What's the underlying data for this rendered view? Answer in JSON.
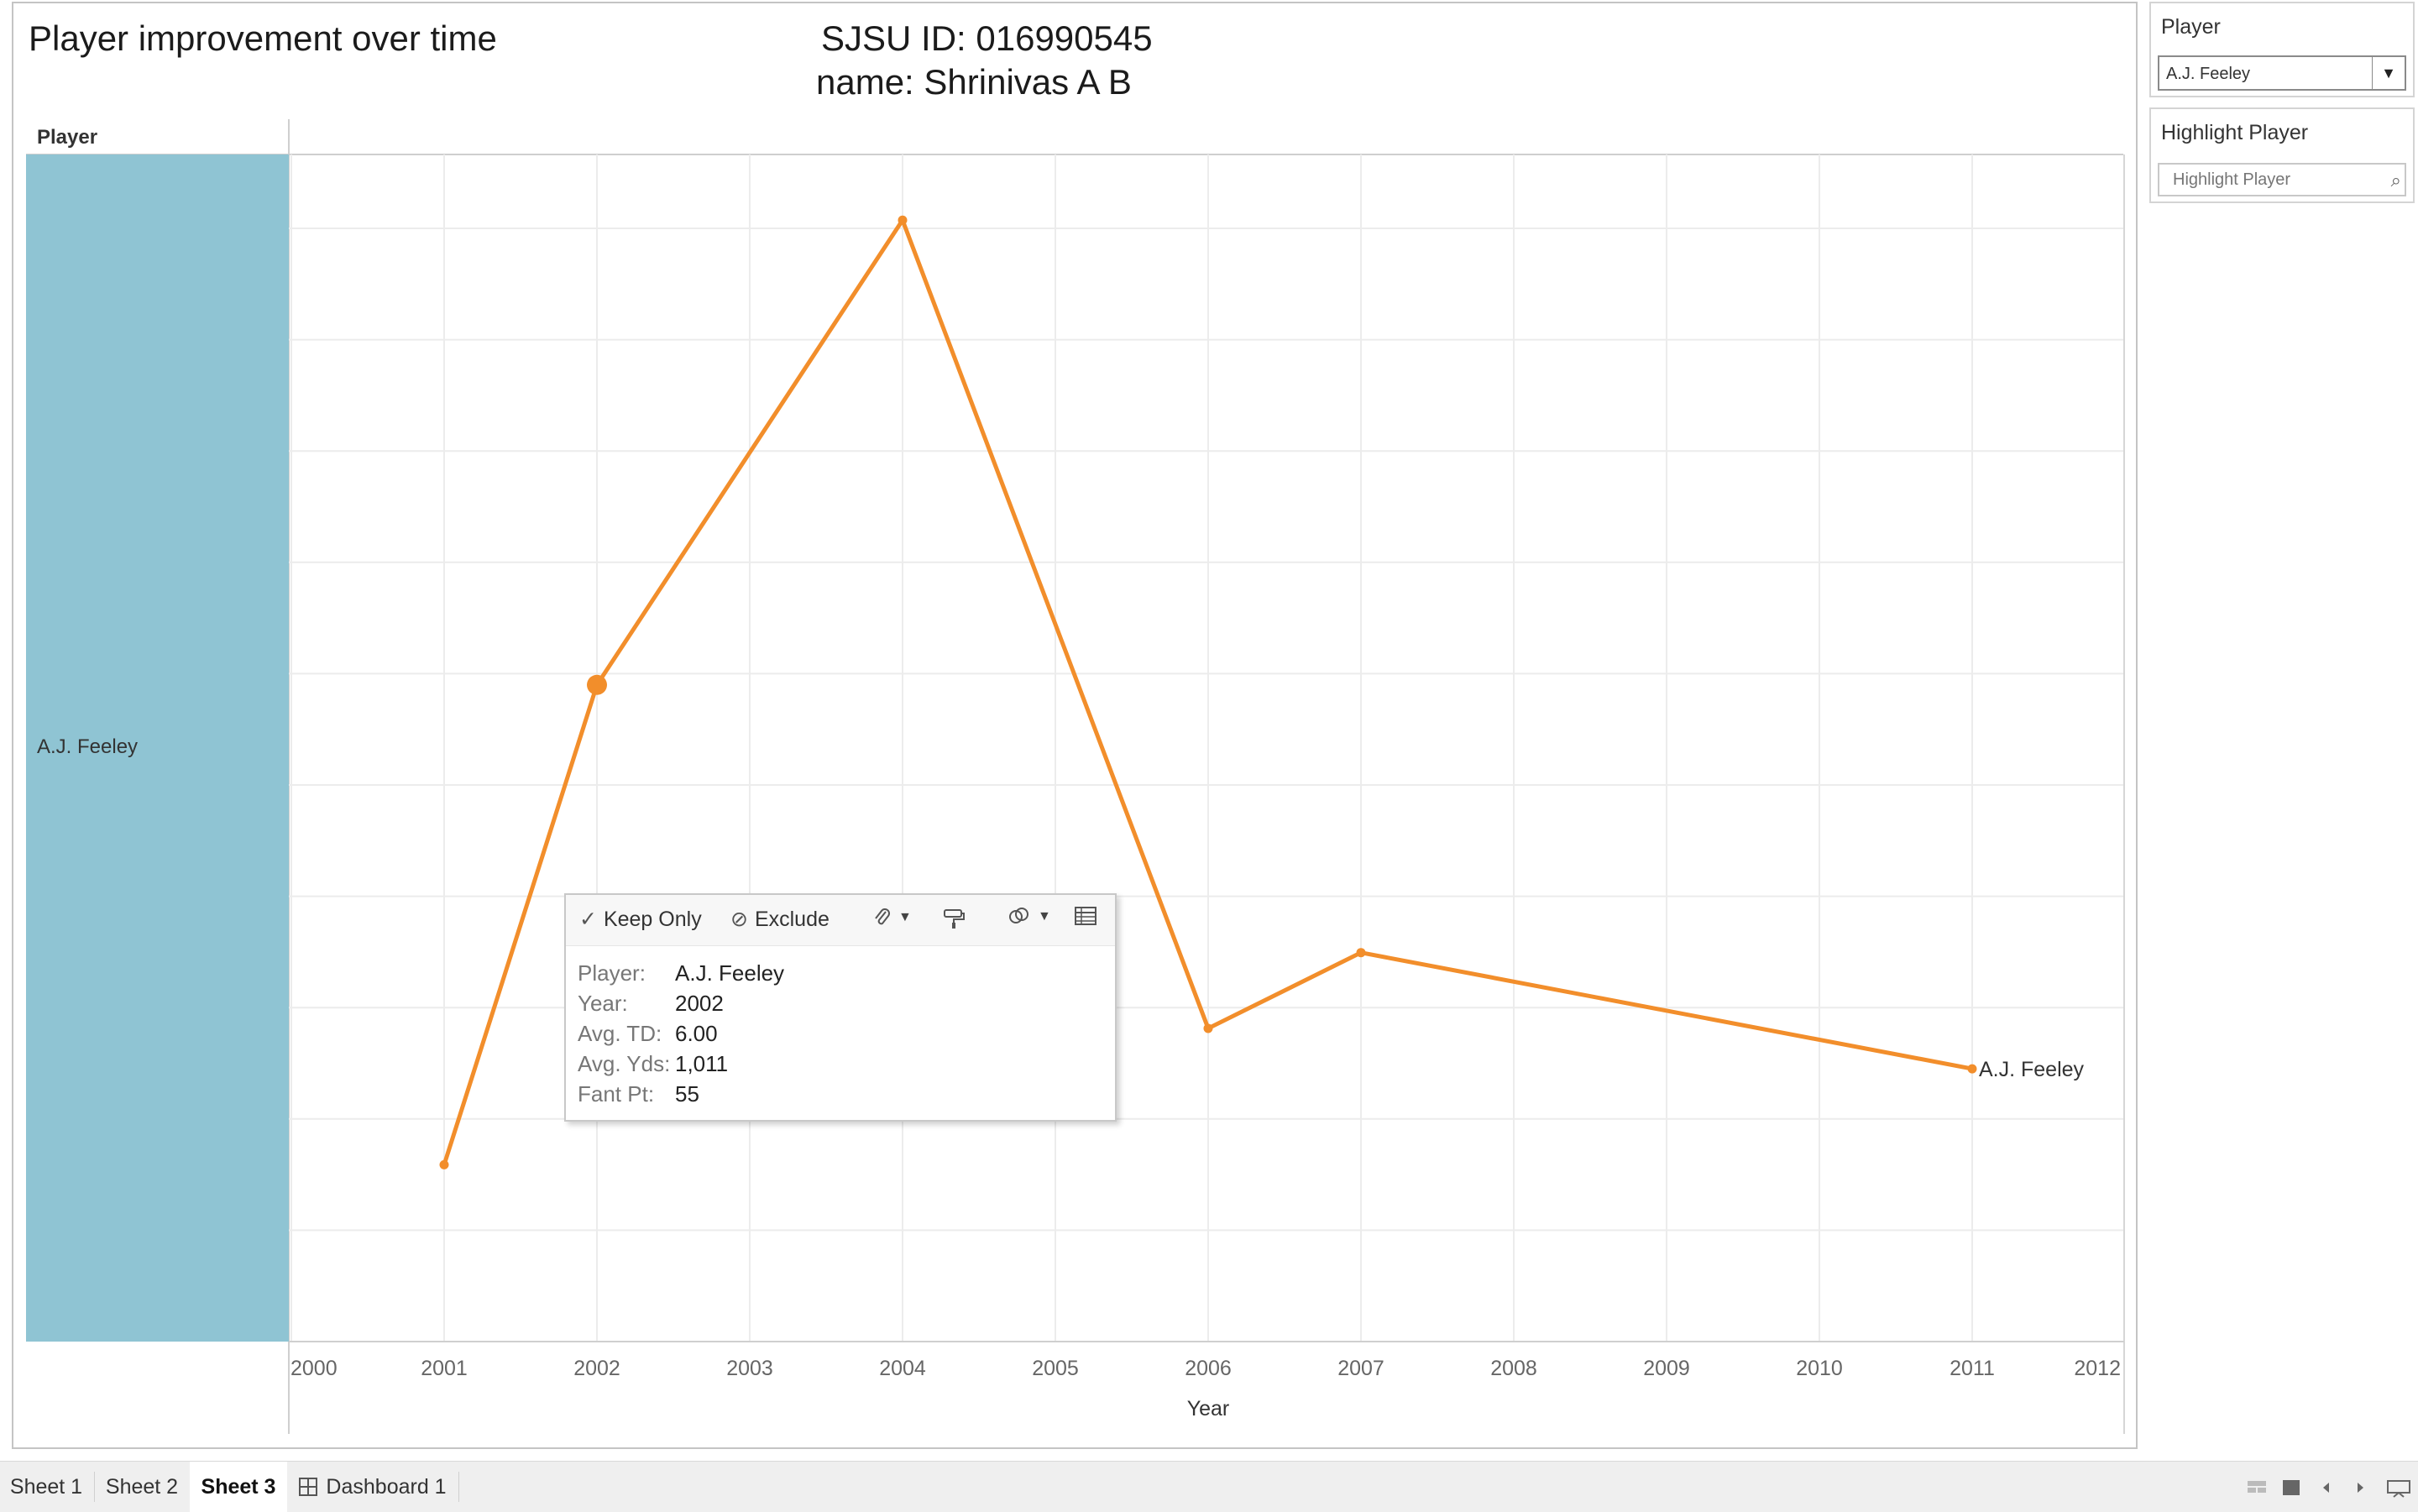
{
  "sheet": {
    "title": "Player improvement over time",
    "sjsu_id": "SJSU ID: 016990545",
    "name": "name: Shrinivas A B",
    "row_header": "Player",
    "row_label": "A.J. Feeley"
  },
  "chart_data": {
    "type": "line",
    "x": [
      2001,
      2002,
      2004,
      2006,
      2007,
      2011
    ],
    "series": [
      {
        "values": [
          35,
          130,
          222,
          62,
          77,
          54
        ],
        "color": "#f28e2b"
      }
    ],
    "xlim": [
      2000,
      2012
    ],
    "x_ticks": [
      "2000",
      "2001",
      "2002",
      "2003",
      "2004",
      "2005",
      "2006",
      "2007",
      "2008",
      "2009",
      "2010",
      "2011",
      "2012"
    ],
    "xlabel": "Year",
    "ylabel": "",
    "ylim": [
      0,
      235
    ],
    "y_ticks_visible": false,
    "grid": true,
    "highlighted_point": {
      "x": 2002
    },
    "end_label": "A.J. Feeley"
  },
  "tooltip": {
    "keep_only": "Keep Only",
    "exclude": "Exclude",
    "rows": [
      {
        "key": "Player:",
        "value": "A.J. Feeley"
      },
      {
        "key": "Year:",
        "value": "2002"
      },
      {
        "key": "Avg. TD:",
        "value": "6.00"
      },
      {
        "key": "Avg. Yds:",
        "value": "1,011"
      },
      {
        "key": "Fant Pt:",
        "value": "55"
      }
    ]
  },
  "sidebar": {
    "player_filter": {
      "title": "Player",
      "selected": "A.J. Feeley"
    },
    "highlight_filter": {
      "title": "Highlight Player",
      "placeholder": "Highlight Player"
    }
  },
  "tabs": [
    {
      "label": "Sheet 1"
    },
    {
      "label": "Sheet 2"
    },
    {
      "label": "Sheet 3",
      "active": true
    },
    {
      "label": "Dashboard 1",
      "icon": "dashboard-grid-icon"
    }
  ],
  "icons": {
    "keep_only": "check-icon",
    "exclude": "exclude-icon",
    "group": "paperclip-icon",
    "format": "paint-roller-icon",
    "sets": "sets-icon",
    "view_data": "view-data-icon",
    "search": "search-icon"
  }
}
